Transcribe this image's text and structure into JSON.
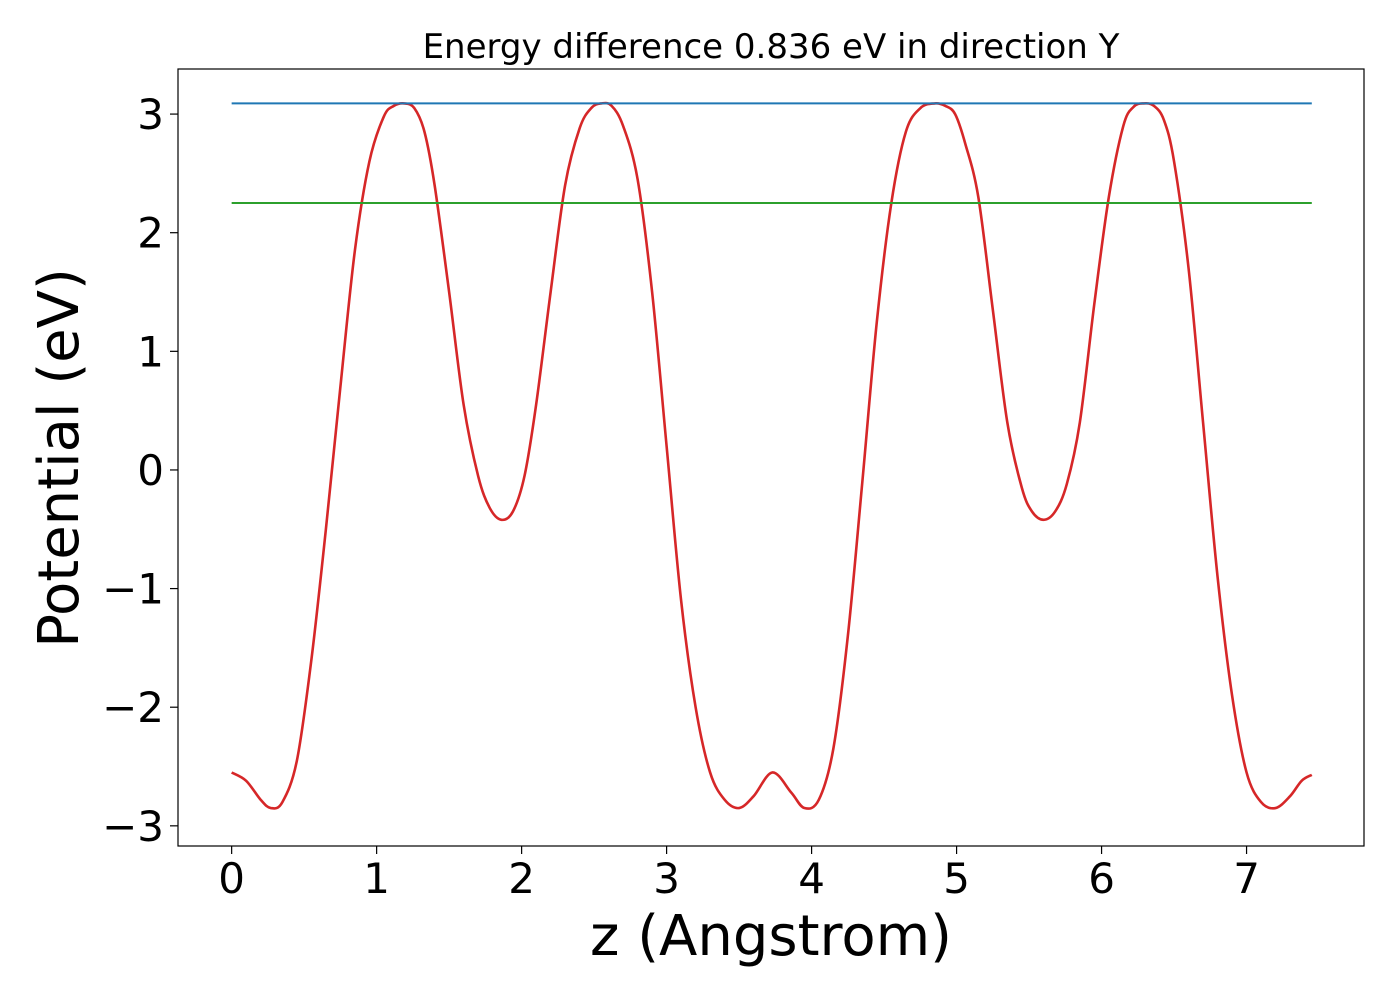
{
  "chart_data": {
    "type": "line",
    "title": "Energy difference 0.836 eV in direction Y",
    "xlabel": "z (Angstrom)",
    "ylabel": "Potential (eV)",
    "xlim": [
      -0.37,
      7.81
    ],
    "ylim": [
      -3.17,
      3.38
    ],
    "xticks": [
      0,
      1,
      2,
      3,
      4,
      5,
      6,
      7
    ],
    "yticks": [
      -3,
      -2,
      -1,
      0,
      1,
      2,
      3
    ],
    "xtick_labels": [
      "0",
      "1",
      "2",
      "3",
      "4",
      "5",
      "6",
      "7"
    ],
    "ytick_labels": [
      "−3",
      "−2",
      "−1",
      "0",
      "1",
      "2",
      "3"
    ],
    "grid": false,
    "series": [
      {
        "color": "#d62728",
        "style": "curve",
        "x": [
          0,
          0.1,
          0.2,
          0.27,
          0.35,
          0.45,
          0.55,
          0.65,
          0.75,
          0.85,
          0.95,
          1.05,
          1.12,
          1.19,
          1.26,
          1.33,
          1.4,
          1.5,
          1.6,
          1.7,
          1.78,
          1.86,
          1.94,
          2.02,
          2.1,
          2.2,
          2.3,
          2.4,
          2.48,
          2.55,
          2.62,
          2.7,
          2.8,
          2.9,
          3.0,
          3.1,
          3.2,
          3.3,
          3.4,
          3.5,
          3.6,
          3.73,
          3.86,
          3.95,
          4.05,
          4.15,
          4.25,
          4.35,
          4.45,
          4.55,
          4.65,
          4.75,
          4.85,
          4.92,
          4.99,
          5.06,
          5.15,
          5.25,
          5.35,
          5.45,
          5.52,
          5.6,
          5.68,
          5.76,
          5.85,
          5.95,
          6.05,
          6.15,
          6.22,
          6.29,
          6.36,
          6.43,
          6.5,
          6.6,
          6.7,
          6.8,
          6.9,
          7.0,
          7.1,
          7.2,
          7.3,
          7.38,
          7.45
        ],
        "y": [
          -2.55,
          -2.62,
          -2.78,
          -2.85,
          -2.8,
          -2.45,
          -1.6,
          -0.5,
          0.7,
          1.85,
          2.6,
          2.98,
          3.07,
          3.09,
          3.05,
          2.85,
          2.4,
          1.5,
          0.55,
          -0.05,
          -0.32,
          -0.42,
          -0.35,
          -0.05,
          0.55,
          1.5,
          2.4,
          2.88,
          3.05,
          3.09,
          3.07,
          2.9,
          2.45,
          1.5,
          0.2,
          -1.1,
          -2.0,
          -2.55,
          -2.78,
          -2.85,
          -2.75,
          -2.55,
          -2.72,
          -2.85,
          -2.78,
          -2.35,
          -1.4,
          -0.1,
          1.25,
          2.25,
          2.85,
          3.05,
          3.09,
          3.07,
          3.0,
          2.75,
          2.3,
          1.35,
          0.4,
          -0.15,
          -0.35,
          -0.42,
          -0.35,
          -0.12,
          0.4,
          1.4,
          2.3,
          2.9,
          3.06,
          3.09,
          3.07,
          2.95,
          2.6,
          1.7,
          0.4,
          -0.9,
          -1.9,
          -2.55,
          -2.8,
          -2.85,
          -2.75,
          -2.62,
          -2.57
        ]
      },
      {
        "color": "#1f77b4",
        "style": "straight",
        "x": [
          0,
          7.45
        ],
        "y": [
          3.09,
          3.09
        ]
      },
      {
        "color": "#2ca02c",
        "style": "straight",
        "x": [
          0,
          7.45
        ],
        "y": [
          2.25,
          2.25
        ]
      }
    ]
  }
}
